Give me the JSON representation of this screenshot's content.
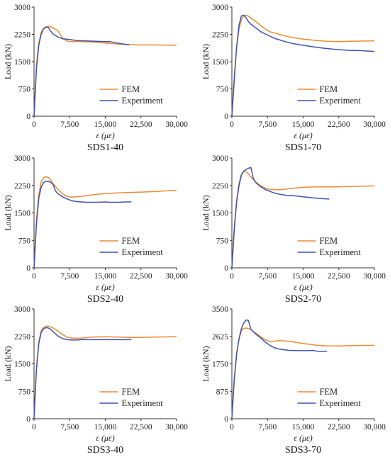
{
  "colors": {
    "fem": "#EE8A33",
    "experiment": "#3F52B0",
    "axis": "#333333"
  },
  "legend": {
    "fem": "FEM",
    "experiment": "Experiment"
  },
  "axes_text": {
    "xlabel": "ε (με)",
    "ylabel": "Load (kN)"
  },
  "chart_data": [
    {
      "type": "line",
      "title": "SDS1-40",
      "xlabel": "ε (με)",
      "ylabel": "Load (kN)",
      "xlim": [
        0,
        30000
      ],
      "ylim": [
        0,
        3000
      ],
      "xticks": [
        0,
        7500,
        15000,
        22500,
        30000
      ],
      "xtick_labels": [
        "0",
        "7,500",
        "15,000",
        "22,500",
        "30,000"
      ],
      "yticks": [
        0,
        750,
        1500,
        2250,
        3000
      ],
      "ytick_labels": [
        "0",
        "750",
        "1500",
        "2250",
        "3000"
      ],
      "legend_position": "lower-right",
      "grid": false,
      "series": [
        {
          "name": "FEM",
          "color_key": "fem",
          "x": [
            0,
            500,
            1000,
            1500,
            2000,
            2500,
            3000,
            3500,
            4000,
            5000,
            6000,
            7000,
            8000,
            10000,
            12000,
            15000,
            18000,
            20000,
            22000,
            25000,
            30000
          ],
          "y": [
            0,
            1400,
            2000,
            2300,
            2420,
            2460,
            2470,
            2460,
            2430,
            2350,
            2150,
            2060,
            2050,
            2050,
            2040,
            2010,
            1980,
            1970,
            1960,
            1960,
            1950
          ]
        },
        {
          "name": "Experiment",
          "color_key": "experiment",
          "x": [
            0,
            500,
            1000,
            1500,
            2000,
            2500,
            3000,
            3500,
            4000,
            5000,
            6000,
            7500,
            9000,
            11000,
            13000,
            15000,
            16000,
            18000,
            20000
          ],
          "y": [
            0,
            1300,
            1950,
            2250,
            2400,
            2450,
            2440,
            2340,
            2260,
            2180,
            2130,
            2110,
            2080,
            2070,
            2060,
            2050,
            2050,
            2000,
            1960
          ]
        }
      ]
    },
    {
      "type": "line",
      "title": "SDS1-70",
      "xlabel": "ε (με)",
      "ylabel": "Load (kN)",
      "xlim": [
        0,
        30000
      ],
      "ylim": [
        0,
        3000
      ],
      "xticks": [
        0,
        7500,
        15000,
        22500,
        30000
      ],
      "xtick_labels": [
        "0",
        "7,500",
        "15,000",
        "22,500",
        "30,000"
      ],
      "yticks": [
        0,
        750,
        1500,
        2250,
        3000
      ],
      "ytick_labels": [
        "0",
        "750",
        "1500",
        "2250",
        "3000"
      ],
      "legend_position": "lower-right",
      "grid": false,
      "series": [
        {
          "name": "FEM",
          "color_key": "fem",
          "x": [
            0,
            500,
            1000,
            1500,
            2000,
            2500,
            3000,
            3500,
            4000,
            5000,
            6000,
            7000,
            8000,
            10000,
            12000,
            15000,
            18000,
            20000,
            22500,
            25000,
            30000
          ],
          "y": [
            0,
            1100,
            1900,
            2400,
            2650,
            2760,
            2780,
            2750,
            2700,
            2600,
            2500,
            2400,
            2320,
            2250,
            2180,
            2120,
            2080,
            2060,
            2050,
            2060,
            2070
          ]
        },
        {
          "name": "Experiment",
          "color_key": "experiment",
          "x": [
            0,
            500,
            1000,
            1500,
            2000,
            2500,
            3000,
            3500,
            4000,
            5000,
            6000,
            7500,
            9000,
            11000,
            13000,
            15000,
            18000,
            20000,
            22500,
            25000,
            27500,
            30000
          ],
          "y": [
            0,
            1000,
            1900,
            2500,
            2760,
            2780,
            2700,
            2600,
            2530,
            2430,
            2330,
            2230,
            2140,
            2060,
            1990,
            1950,
            1890,
            1860,
            1830,
            1810,
            1800,
            1780
          ]
        }
      ]
    },
    {
      "type": "line",
      "title": "SDS2-40",
      "xlabel": "ε (με)",
      "ylabel": "Load (kN)",
      "xlim": [
        0,
        30000
      ],
      "ylim": [
        0,
        3000
      ],
      "xticks": [
        0,
        7500,
        15000,
        22500,
        30000
      ],
      "xtick_labels": [
        "0",
        "7,500",
        "15,000",
        "22,500",
        "30,000"
      ],
      "yticks": [
        0,
        750,
        1500,
        2250,
        3000
      ],
      "ytick_labels": [
        "0",
        "750",
        "1500",
        "2250",
        "3000"
      ],
      "legend_position": "lower-right",
      "grid": false,
      "series": [
        {
          "name": "FEM",
          "color_key": "fem",
          "x": [
            0,
            500,
            1000,
            1500,
            2000,
            2500,
            3000,
            3500,
            4000,
            5000,
            6000,
            7000,
            8000,
            10000,
            12000,
            15000,
            18000,
            20000,
            22500,
            25000,
            30000
          ],
          "y": [
            0,
            1300,
            2000,
            2350,
            2460,
            2490,
            2470,
            2400,
            2300,
            2150,
            2020,
            1950,
            1930,
            1950,
            1990,
            2030,
            2050,
            2060,
            2070,
            2080,
            2120
          ]
        },
        {
          "name": "Experiment",
          "color_key": "experiment",
          "x": [
            0,
            500,
            1000,
            1500,
            2000,
            2500,
            3000,
            3500,
            4000,
            4500,
            5000,
            6000,
            7000,
            8000,
            9000,
            11000,
            13000,
            15000,
            16000,
            18000,
            19000,
            20500
          ],
          "y": [
            0,
            1200,
            1900,
            2200,
            2330,
            2370,
            2360,
            2340,
            2280,
            2100,
            2030,
            1940,
            1880,
            1830,
            1810,
            1790,
            1790,
            1800,
            1790,
            1790,
            1800,
            1800
          ]
        }
      ]
    },
    {
      "type": "line",
      "title": "SDS2-70",
      "xlabel": "ε (με)",
      "ylabel": "Load (kN)",
      "xlim": [
        0,
        30000
      ],
      "ylim": [
        0,
        3000
      ],
      "xticks": [
        0,
        7500,
        15000,
        22500,
        30000
      ],
      "xtick_labels": [
        "0",
        "7,500",
        "15,000",
        "22,500",
        "30,000"
      ],
      "yticks": [
        0,
        750,
        1500,
        2250,
        3000
      ],
      "ytick_labels": [
        "0",
        "750",
        "1500",
        "2250",
        "3000"
      ],
      "legend_position": "lower-right",
      "grid": false,
      "series": [
        {
          "name": "FEM",
          "color_key": "fem",
          "x": [
            0,
            500,
            1000,
            1500,
            2000,
            2500,
            3000,
            3500,
            4000,
            5000,
            6000,
            7000,
            8000,
            10000,
            12000,
            15000,
            18000,
            20000,
            22500,
            25000,
            30000
          ],
          "y": [
            0,
            1100,
            1850,
            2300,
            2550,
            2640,
            2620,
            2560,
            2480,
            2350,
            2250,
            2180,
            2140,
            2130,
            2160,
            2200,
            2210,
            2210,
            2210,
            2220,
            2240
          ]
        },
        {
          "name": "Experiment",
          "color_key": "experiment",
          "x": [
            0,
            500,
            1000,
            1500,
            2000,
            2500,
            3000,
            3500,
            4000,
            4500,
            5000,
            6000,
            7000,
            8000,
            9000,
            10000,
            11500,
            13000,
            15000,
            17000,
            19000,
            20500
          ],
          "y": [
            0,
            1050,
            1800,
            2250,
            2530,
            2640,
            2690,
            2720,
            2740,
            2450,
            2330,
            2220,
            2140,
            2090,
            2040,
            2010,
            1980,
            1970,
            1940,
            1910,
            1890,
            1880
          ]
        }
      ]
    },
    {
      "type": "line",
      "title": "SDS3-40",
      "xlabel": "ε (με)",
      "ylabel": "Load (kN)",
      "xlim": [
        0,
        30000
      ],
      "ylim": [
        0,
        3000
      ],
      "xticks": [
        0,
        7500,
        15000,
        22500,
        30000
      ],
      "xtick_labels": [
        "0",
        "7,500",
        "15,000",
        "22,500",
        "30,000"
      ],
      "yticks": [
        0,
        750,
        1500,
        2250,
        3000
      ],
      "ytick_labels": [
        "0",
        "750",
        "1500",
        "2250",
        "3000"
      ],
      "legend_position": "lower-right",
      "grid": false,
      "series": [
        {
          "name": "FEM",
          "color_key": "fem",
          "x": [
            0,
            500,
            1000,
            1500,
            2000,
            2500,
            3000,
            3500,
            4000,
            5000,
            6000,
            7000,
            8000,
            10000,
            12000,
            15000,
            18000,
            20000,
            22500,
            25000,
            30000
          ],
          "y": [
            0,
            1400,
            2100,
            2400,
            2500,
            2530,
            2530,
            2510,
            2480,
            2400,
            2300,
            2230,
            2200,
            2200,
            2230,
            2240,
            2230,
            2220,
            2220,
            2230,
            2240
          ]
        },
        {
          "name": "Experiment",
          "color_key": "experiment",
          "x": [
            0,
            500,
            1000,
            1500,
            2000,
            2500,
            3000,
            3500,
            4000,
            5000,
            6000,
            7000,
            8000,
            9000,
            10000,
            12000,
            15000,
            18000,
            20500
          ],
          "y": [
            0,
            1350,
            2050,
            2350,
            2460,
            2490,
            2480,
            2440,
            2380,
            2260,
            2190,
            2160,
            2150,
            2150,
            2160,
            2160,
            2160,
            2160,
            2160
          ]
        }
      ]
    },
    {
      "type": "line",
      "title": "SDS3-70",
      "xlabel": "ε (με)",
      "ylabel": "Load (kN)",
      "xlim": [
        0,
        30000
      ],
      "ylim": [
        0,
        3500
      ],
      "xticks": [
        0,
        7500,
        15000,
        22500,
        30000
      ],
      "xtick_labels": [
        "0",
        "7,500",
        "15,000",
        "22,500",
        "30,000"
      ],
      "yticks": [
        0,
        875,
        1750,
        2625,
        3500
      ],
      "ytick_labels": [
        "0",
        "875",
        "1750",
        "2625",
        "3500"
      ],
      "legend_position": "lower-right",
      "grid": false,
      "series": [
        {
          "name": "FEM",
          "color_key": "fem",
          "x": [
            0,
            500,
            1000,
            1500,
            2000,
            2500,
            3000,
            3500,
            4000,
            5000,
            6000,
            7000,
            8000,
            10000,
            12000,
            15000,
            18000,
            20000,
            22500,
            25000,
            30000
          ],
          "y": [
            0,
            1300,
            2100,
            2550,
            2800,
            2880,
            2890,
            2870,
            2840,
            2730,
            2620,
            2520,
            2460,
            2490,
            2470,
            2400,
            2340,
            2320,
            2320,
            2330,
            2340
          ]
        },
        {
          "name": "Experiment",
          "color_key": "experiment",
          "x": [
            0,
            500,
            1000,
            1500,
            2000,
            2500,
            3000,
            3500,
            4000,
            5000,
            6000,
            7000,
            8000,
            9000,
            10000,
            11000,
            12000,
            14000,
            16000,
            17000,
            18000,
            20000
          ],
          "y": [
            0,
            1250,
            2050,
            2550,
            2870,
            3050,
            3150,
            3130,
            2850,
            2700,
            2580,
            2450,
            2340,
            2260,
            2220,
            2200,
            2180,
            2170,
            2170,
            2180,
            2150,
            2150
          ]
        }
      ]
    }
  ]
}
